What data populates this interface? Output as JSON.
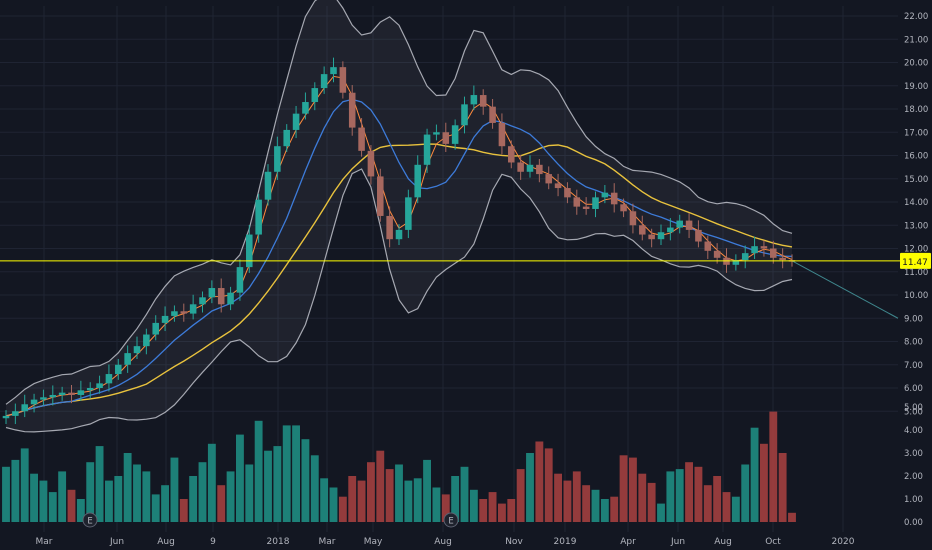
{
  "colors": {
    "background": "#131722",
    "grid": "#1f2433",
    "bull_candle": "#26a69a",
    "bear_candle": "#a7685f",
    "bull_volume": "#1f8c82",
    "bear_volume": "#a33f3f",
    "price_line": "#ffff00",
    "price_label_bg": "#ffff00",
    "axis_text": "#b2b5be",
    "ma_fast": "#ff8a3d",
    "ma_mid": "#3d7bd9",
    "ma_slow": "#e8c23d",
    "band": "#c9ccd4",
    "trend_line": "#4aa3a8"
  },
  "chart_data": {
    "type": "candlestick",
    "price_axis": {
      "ticks": [
        "22.00",
        "21.00",
        "20.00",
        "19.00",
        "18.00",
        "17.00",
        "16.00",
        "15.00",
        "14.00",
        "13.00",
        "12.00",
        "11.00",
        "10.00",
        "9.00",
        "8.00",
        "7.00",
        "6.00",
        "5.00"
      ],
      "range": [
        4.3,
        22.3
      ]
    },
    "volume_axis": {
      "ticks": [
        "5.00",
        "4.00",
        "3.00",
        "2.00",
        "1.00",
        "0.00"
      ],
      "range": [
        0,
        5.5
      ]
    },
    "x_axis": {
      "labels": [
        "Mar",
        "Jun",
        "Aug",
        "9",
        "2018",
        "Mar",
        "May",
        "Aug",
        "Nov",
        "2019",
        "Apr",
        "Jun",
        "Aug",
        "Oct",
        "2020"
      ]
    },
    "last_price": "11.47",
    "earnings_markers": [
      "E",
      "E"
    ],
    "close_series": [
      4.8,
      5.0,
      5.3,
      5.5,
      5.6,
      5.7,
      5.8,
      5.7,
      5.9,
      6.0,
      6.2,
      6.6,
      7.0,
      7.5,
      7.8,
      8.3,
      8.8,
      9.1,
      9.3,
      9.2,
      9.6,
      9.9,
      10.3,
      9.6,
      10.1,
      11.2,
      12.6,
      14.1,
      15.3,
      16.4,
      17.1,
      17.8,
      18.3,
      18.9,
      19.5,
      19.8,
      18.7,
      17.2,
      16.2,
      15.1,
      13.4,
      12.4,
      12.8,
      14.2,
      15.6,
      16.9,
      17.0,
      16.5,
      17.3,
      18.2,
      18.6,
      18.1,
      17.4,
      16.4,
      15.7,
      15.3,
      15.6,
      15.2,
      14.8,
      14.6,
      14.2,
      13.8,
      13.7,
      14.2,
      14.4,
      13.9,
      13.6,
      13.0,
      12.6,
      12.4,
      12.7,
      12.9,
      13.2,
      12.8,
      12.3,
      11.9,
      11.6,
      11.3,
      11.5,
      11.8,
      12.1,
      12.0,
      11.6,
      11.5,
      11.47
    ],
    "volume_series": [
      2.4,
      2.7,
      3.2,
      2.1,
      1.8,
      1.3,
      2.2,
      1.4,
      1.0,
      2.6,
      3.3,
      1.8,
      2.0,
      3.0,
      2.5,
      2.2,
      1.2,
      1.6,
      2.8,
      1.0,
      2.0,
      2.6,
      3.4,
      1.6,
      2.2,
      3.8,
      2.5,
      4.4,
      3.1,
      3.3,
      4.2,
      4.2,
      3.6,
      2.9,
      1.9,
      1.5,
      1.1,
      2.0,
      1.8,
      2.6,
      3.1,
      2.3,
      2.5,
      1.8,
      1.9,
      2.7,
      1.5,
      1.2,
      2.0,
      2.4,
      1.4,
      1.0,
      1.3,
      0.8,
      1.0,
      2.3,
      3.0,
      3.5,
      3.2,
      2.1,
      1.8,
      2.2,
      1.6,
      1.4,
      1.0,
      1.1,
      2.9,
      2.8,
      2.1,
      1.7,
      0.8,
      2.2,
      2.3,
      2.6,
      2.4,
      1.6,
      2.0,
      1.3,
      1.1,
      2.5,
      4.1,
      3.4,
      4.8,
      3.0,
      0.4
    ]
  }
}
